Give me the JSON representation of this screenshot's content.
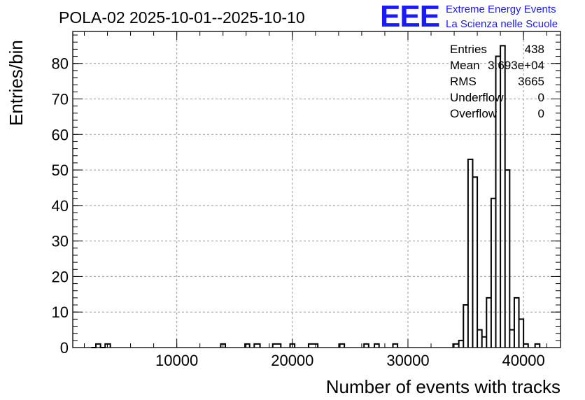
{
  "chart_data": {
    "type": "histogram",
    "title": "POLA-02 2025-10-01--2025-10-10",
    "xlabel": "Number of events with tracks",
    "ylabel": "Entries/bin",
    "xlim": [
      1000,
      43200
    ],
    "ylim": [
      0,
      89
    ],
    "grid": true,
    "x_ticks": [
      10000,
      20000,
      30000,
      40000
    ],
    "y_ticks": [
      0,
      10,
      20,
      30,
      40,
      50,
      60,
      70,
      80
    ],
    "bins": [
      {
        "x0": 2600,
        "x1": 3000,
        "count": 0
      },
      {
        "x0": 3000,
        "x1": 3400,
        "count": 1
      },
      {
        "x0": 3400,
        "x1": 3800,
        "count": 0
      },
      {
        "x0": 3800,
        "x1": 4250,
        "count": 1
      },
      {
        "x0": 13800,
        "x1": 14200,
        "count": 1
      },
      {
        "x0": 15900,
        "x1": 16300,
        "count": 1
      },
      {
        "x0": 16700,
        "x1": 17200,
        "count": 1
      },
      {
        "x0": 18300,
        "x1": 19000,
        "count": 1
      },
      {
        "x0": 19800,
        "x1": 20200,
        "count": 1
      },
      {
        "x0": 21400,
        "x1": 22200,
        "count": 1
      },
      {
        "x0": 24100,
        "x1": 24500,
        "count": 1
      },
      {
        "x0": 26200,
        "x1": 26600,
        "count": 1
      },
      {
        "x0": 27100,
        "x1": 27500,
        "count": 1
      },
      {
        "x0": 28700,
        "x1": 29100,
        "count": 1
      },
      {
        "x0": 33900,
        "x1": 34400,
        "count": 1
      },
      {
        "x0": 34400,
        "x1": 34800,
        "count": 2
      },
      {
        "x0": 34800,
        "x1": 35200,
        "count": 12
      },
      {
        "x0": 35200,
        "x1": 35600,
        "count": 53
      },
      {
        "x0": 35600,
        "x1": 36000,
        "count": 48
      },
      {
        "x0": 36000,
        "x1": 36400,
        "count": 5
      },
      {
        "x0": 36400,
        "x1": 36800,
        "count": 3
      },
      {
        "x0": 36800,
        "x1": 37200,
        "count": 14
      },
      {
        "x0": 37200,
        "x1": 37600,
        "count": 42
      },
      {
        "x0": 37600,
        "x1": 38000,
        "count": 82
      },
      {
        "x0": 38000,
        "x1": 38400,
        "count": 85
      },
      {
        "x0": 38400,
        "x1": 38800,
        "count": 50
      },
      {
        "x0": 38800,
        "x1": 39200,
        "count": 5
      },
      {
        "x0": 39200,
        "x1": 39600,
        "count": 14
      },
      {
        "x0": 39600,
        "x1": 40000,
        "count": 8
      },
      {
        "x0": 40000,
        "x1": 40400,
        "count": 1
      },
      {
        "x0": 41000,
        "x1": 41400,
        "count": 1
      }
    ],
    "stats": [
      {
        "label": "Entries",
        "value": "438"
      },
      {
        "label": "Mean",
        "value": "3.693e+04"
      },
      {
        "label": "RMS",
        "value": "3665"
      },
      {
        "label": "Underflow",
        "value": "0"
      },
      {
        "label": "Overflow",
        "value": "0"
      }
    ]
  },
  "logo": {
    "text": "EEE",
    "line1": "Extreme Energy Events",
    "line2": "La Scienza nelle Scuole",
    "color": "#1a1aff"
  }
}
